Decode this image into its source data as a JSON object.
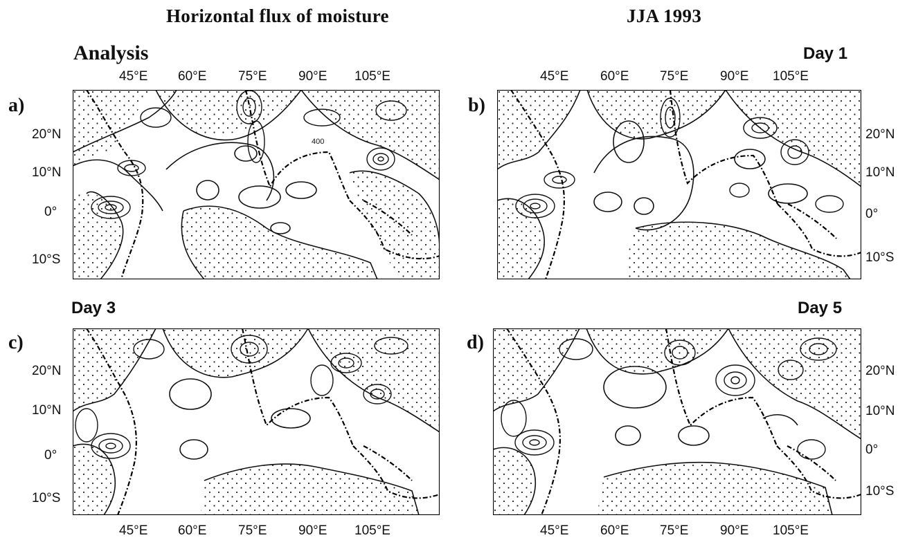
{
  "figure": {
    "title_left": "Horizontal flux of moisture",
    "title_right": "JJA 1993"
  },
  "panels": [
    {
      "letter": "a)",
      "label": "Analysis",
      "contour_label": "400"
    },
    {
      "letter": "b)",
      "label": "Day 1",
      "contour_label": ""
    },
    {
      "letter": "c)",
      "label": "Day 3",
      "contour_label": ""
    },
    {
      "letter": "d)",
      "label": "Day 5",
      "contour_label": ""
    }
  ],
  "axes": {
    "lon_ticks": [
      "45°E",
      "60°E",
      "75°E",
      "90°E",
      "105°E"
    ],
    "lat_ticks": [
      "20°N",
      "10°N",
      "0°",
      "10°S"
    ]
  }
}
